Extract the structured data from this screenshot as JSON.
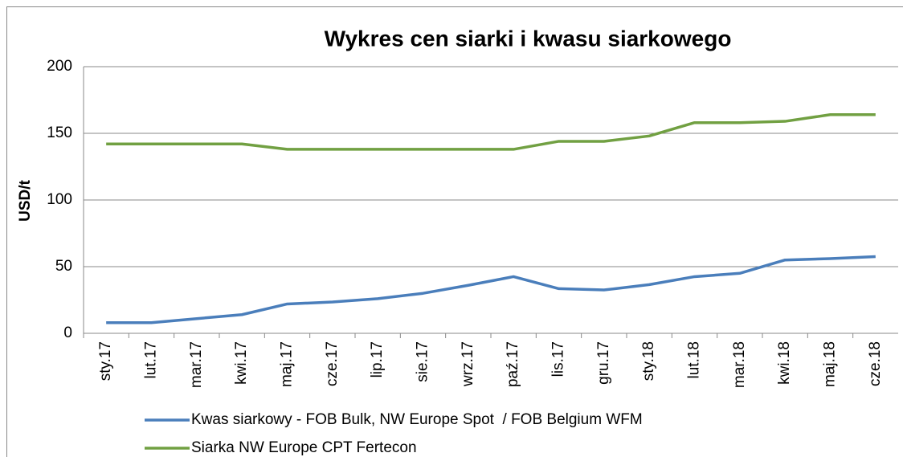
{
  "chart_data": {
    "type": "line",
    "title": "Wykres cen siarki i kwasu siarkowego",
    "y_label": "USD/t",
    "categories": [
      "sty.17",
      "lut.17",
      "mar.17",
      "kwi.17",
      "maj.17",
      "cze.17",
      "lip.17",
      "sie.17",
      "wrz.17",
      "paź.17",
      "lis.17",
      "gru.17",
      "sty.18",
      "lut.18",
      "mar.18",
      "kwi.18",
      "maj.18",
      "cze.18"
    ],
    "series": [
      {
        "name": "Kwas siarkowy - FOB Bulk, NW Europe Spot  / FOB Belgium WFM",
        "color": "#4a7ebb",
        "values": [
          8,
          8,
          11,
          14,
          22,
          23.5,
          26,
          30,
          36,
          42.5,
          33.5,
          32.5,
          36.5,
          42.5,
          45,
          55,
          56,
          57.5
        ]
      },
      {
        "name": "Siarka NW Europe CPT Fertecon",
        "color": "#71a042",
        "values": [
          142,
          142,
          142,
          142,
          138,
          138,
          138,
          138,
          138,
          138,
          144,
          144,
          148,
          158,
          158,
          159,
          164,
          164
        ]
      }
    ],
    "ylim": [
      0,
      200
    ],
    "yticks": [
      0,
      50,
      100,
      150,
      200
    ],
    "grid": true,
    "legend": "bottom"
  }
}
